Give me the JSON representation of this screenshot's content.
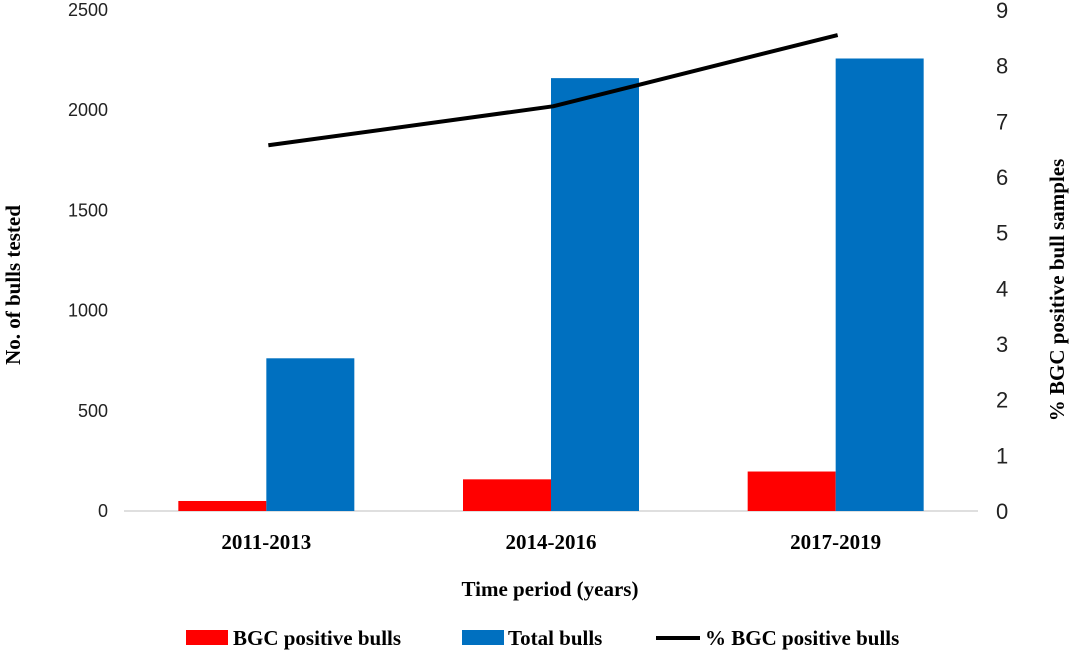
{
  "chart_data": {
    "type": "bar",
    "categories": [
      "2011-2013",
      "2014-2016",
      "2017-2019"
    ],
    "series": [
      {
        "name": "BGC positive bulls",
        "kind": "bar",
        "axis": "left",
        "color": "#ff0000",
        "values": [
          50,
          158,
          197
        ]
      },
      {
        "name": "Total bulls",
        "kind": "bar",
        "axis": "left",
        "color": "#0070c0",
        "values": [
          762,
          2160,
          2258
        ]
      },
      {
        "name": "% BGC positive bulls",
        "kind": "line",
        "axis": "right",
        "color": "#000000",
        "values": [
          6.57,
          7.27,
          8.55
        ]
      }
    ],
    "xlabel": "Time period (years)",
    "ylabel": "No. of bulls tested",
    "y2label": "% BGC positive bull samples",
    "ylim": [
      0,
      2500
    ],
    "yticks": [
      "0",
      "500",
      "1000",
      "1500",
      "2000",
      "2500"
    ],
    "y2lim": [
      0,
      9
    ],
    "y2ticks": [
      "0",
      "1",
      "2",
      "3",
      "4",
      "5",
      "6",
      "7",
      "8",
      "9"
    ],
    "grid": false,
    "legend": "bottom"
  }
}
